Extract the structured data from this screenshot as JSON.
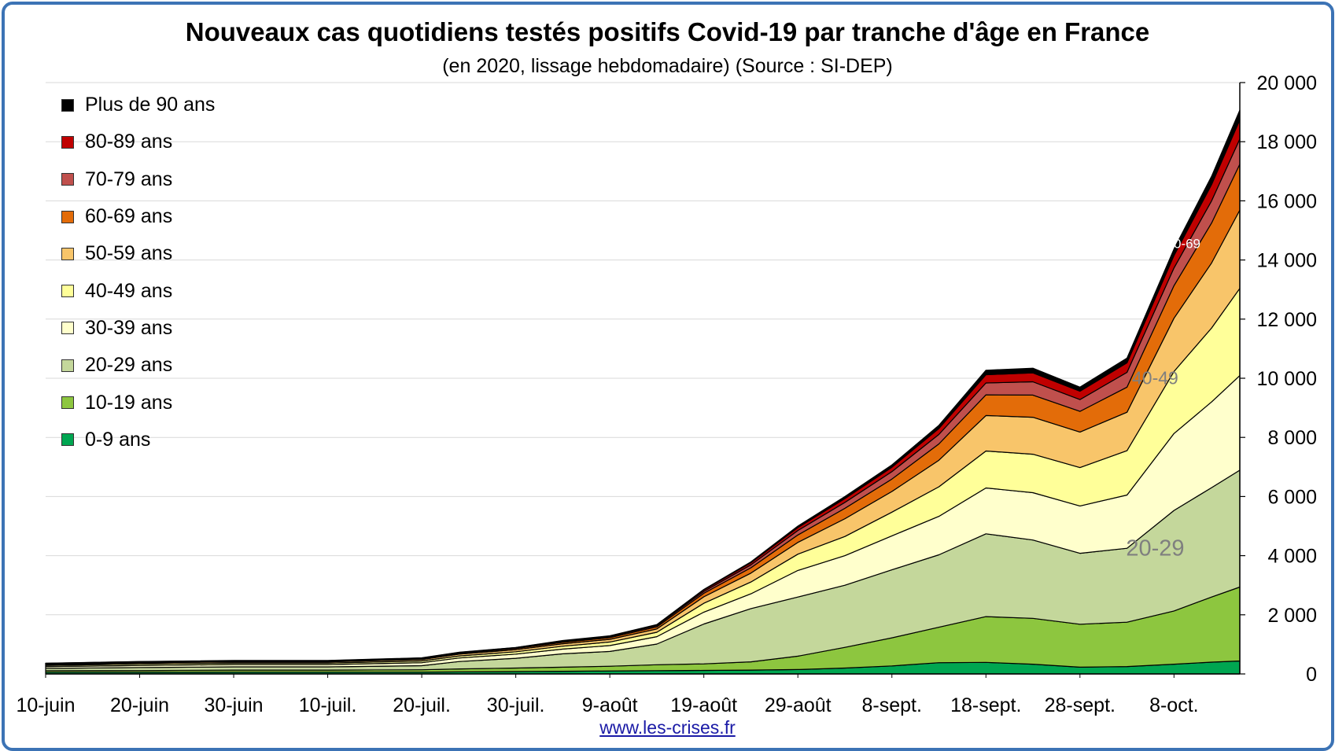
{
  "chart_data": {
    "type": "area",
    "stacked": true,
    "title": "Nouveaux cas quotidiens testés positifs Covid-19 par tranche d'âge en France",
    "subtitle": "(en 2020, lissage hebdomadaire) (Source : SI-DEP)",
    "y_axis_position": "right",
    "ylim": [
      0,
      20000
    ],
    "y_ticks": [
      0,
      2000,
      4000,
      6000,
      8000,
      10000,
      12000,
      14000,
      16000,
      18000,
      20000
    ],
    "y_tick_labels": [
      "0",
      "2 000",
      "4 000",
      "6 000",
      "8 000",
      "10 000",
      "12 000",
      "14 000",
      "16 000",
      "18 000",
      "20 000"
    ],
    "x_start": "2020-06-10",
    "x_end": "2020-10-15",
    "x_ticks": [
      "2020-06-10",
      "2020-06-20",
      "2020-06-30",
      "2020-07-10",
      "2020-07-20",
      "2020-07-30",
      "2020-08-09",
      "2020-08-19",
      "2020-08-29",
      "2020-09-08",
      "2020-09-18",
      "2020-09-28",
      "2020-10-08"
    ],
    "x_tick_labels": [
      "10-juin",
      "20-juin",
      "30-juin",
      "10-juil.",
      "20-juil.",
      "30-juil.",
      "9-août",
      "19-août",
      "29-août",
      "8-sept.",
      "18-sept.",
      "28-sept.",
      "8-oct."
    ],
    "grid": true,
    "legend_position": "top-left",
    "legend_order": [
      "Plus de 90 ans",
      "80-89 ans",
      "70-79 ans",
      "60-69 ans",
      "50-59 ans",
      "40-49 ans",
      "30-39 ans",
      "20-29 ans",
      "10-19 ans",
      "0-9 ans"
    ],
    "x": [
      "2020-06-10",
      "2020-06-20",
      "2020-06-30",
      "2020-07-10",
      "2020-07-20",
      "2020-07-24",
      "2020-07-30",
      "2020-08-04",
      "2020-08-09",
      "2020-08-14",
      "2020-08-19",
      "2020-08-24",
      "2020-08-29",
      "2020-09-03",
      "2020-09-08",
      "2020-09-13",
      "2020-09-18",
      "2020-09-23",
      "2020-09-28",
      "2020-10-03",
      "2020-10-08",
      "2020-10-12",
      "2020-10-15"
    ],
    "series": [
      {
        "name": "0-9 ans",
        "color": "#00a651",
        "values": [
          60,
          55,
          60,
          60,
          60,
          70,
          80,
          90,
          100,
          110,
          120,
          130,
          150,
          200,
          270,
          380,
          390,
          330,
          230,
          250,
          330,
          400,
          440
        ]
      },
      {
        "name": "10-19 ans",
        "color": "#8dc63f",
        "values": [
          50,
          60,
          70,
          70,
          80,
          100,
          120,
          140,
          160,
          200,
          220,
          280,
          450,
          700,
          950,
          1200,
          1550,
          1550,
          1450,
          1500,
          1800,
          2200,
          2500
        ]
      },
      {
        "name": "20-29 ans",
        "color": "#c4d79b",
        "values": [
          80,
          100,
          110,
          110,
          140,
          250,
          330,
          450,
          500,
          700,
          1350,
          1800,
          2000,
          2100,
          2300,
          2450,
          2800,
          2650,
          2400,
          2500,
          3400,
          3700,
          3950
        ]
      },
      {
        "name": "30-39 ans",
        "color": "#ffffcc",
        "values": [
          60,
          70,
          80,
          80,
          100,
          120,
          140,
          160,
          200,
          250,
          400,
          500,
          900,
          1000,
          1150,
          1300,
          1550,
          1600,
          1600,
          1800,
          2600,
          2900,
          3200
        ]
      },
      {
        "name": "40-49 ans",
        "color": "#ffff99",
        "values": [
          40,
          50,
          50,
          50,
          60,
          70,
          80,
          100,
          120,
          150,
          300,
          400,
          550,
          650,
          800,
          1000,
          1250,
          1300,
          1300,
          1500,
          2100,
          2500,
          2950
        ]
      },
      {
        "name": "50-59 ans",
        "color": "#f8c56a",
        "values": [
          30,
          40,
          40,
          40,
          50,
          60,
          70,
          80,
          90,
          110,
          220,
          300,
          400,
          600,
          700,
          900,
          1200,
          1250,
          1200,
          1300,
          1800,
          2200,
          2650
        ]
      },
      {
        "name": "60-69 ans",
        "color": "#e36c09",
        "values": [
          20,
          20,
          20,
          20,
          30,
          30,
          40,
          50,
          60,
          70,
          120,
          180,
          250,
          350,
          420,
          550,
          700,
          750,
          700,
          850,
          1100,
          1350,
          1550
        ]
      },
      {
        "name": "70-79 ans",
        "color": "#c0504d",
        "values": [
          10,
          10,
          10,
          10,
          10,
          20,
          20,
          30,
          30,
          40,
          60,
          100,
          150,
          200,
          250,
          320,
          400,
          450,
          400,
          500,
          600,
          750,
          850
        ]
      },
      {
        "name": "80-89 ans",
        "color": "#c00000",
        "values": [
          10,
          10,
          10,
          10,
          10,
          10,
          10,
          20,
          20,
          30,
          50,
          70,
          100,
          130,
          150,
          200,
          280,
          300,
          280,
          320,
          420,
          550,
          650
        ]
      },
      {
        "name": "Plus de 90 ans",
        "color": "#000000",
        "values": [
          5,
          5,
          5,
          5,
          5,
          5,
          5,
          10,
          10,
          10,
          20,
          30,
          50,
          70,
          80,
          110,
          150,
          160,
          140,
          160,
          220,
          280,
          330
        ]
      }
    ],
    "annotations": [
      {
        "text": "20-29",
        "series": "20-29 ans",
        "x": "2020-10-06",
        "y": 4000,
        "color": "#7f7f7f",
        "size": "large"
      },
      {
        "text": "40-49",
        "series": "40-49 ans",
        "x": "2020-10-06",
        "y": 9800,
        "color": "#7f7f7f",
        "size": "medium"
      },
      {
        "text": "60-69",
        "series": "60-69 ans",
        "x": "2020-10-09",
        "y": 14400,
        "color": "#ffffff",
        "size": "small"
      }
    ],
    "source_label": "www.les-crises.fr"
  }
}
